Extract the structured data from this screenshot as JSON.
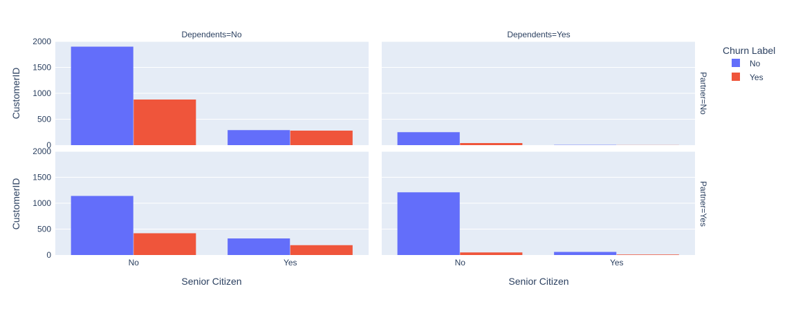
{
  "chart_data": {
    "type": "bar",
    "barmode": "group",
    "x_title": "Senior Citizen",
    "y_title": "CustomerID",
    "categories": [
      "No",
      "Yes"
    ],
    "y_range": [
      0,
      2000
    ],
    "y_ticks": [
      0,
      500,
      1000,
      1500,
      2000
    ],
    "y_tick_labels": [
      "0",
      "500",
      "1000",
      "1500",
      "2000"
    ],
    "column_labels": [
      "Dependents=No",
      "Dependents=Yes"
    ],
    "row_labels": [
      "Partner=No",
      "Partner=Yes"
    ],
    "legend": {
      "title": "Churn Label",
      "position": "top-right",
      "entries": [
        {
          "name": "No",
          "color": "#636efa"
        },
        {
          "name": "Yes",
          "color": "#ef553b"
        }
      ]
    },
    "panels": [
      {
        "dependents": "No",
        "partner": "No",
        "series": [
          {
            "name": "No",
            "values": [
              1900,
              290
            ]
          },
          {
            "name": "Yes",
            "values": [
              880,
              280
            ]
          }
        ]
      },
      {
        "dependents": "Yes",
        "partner": "No",
        "series": [
          {
            "name": "No",
            "values": [
              250,
              5
            ]
          },
          {
            "name": "Yes",
            "values": [
              40,
              2
            ]
          }
        ]
      },
      {
        "dependents": "No",
        "partner": "Yes",
        "series": [
          {
            "name": "No",
            "values": [
              1140,
              320
            ]
          },
          {
            "name": "Yes",
            "values": [
              420,
              190
            ]
          }
        ]
      },
      {
        "dependents": "Yes",
        "partner": "Yes",
        "series": [
          {
            "name": "No",
            "values": [
              1210,
              60
            ]
          },
          {
            "name": "Yes",
            "values": [
              50,
              10
            ]
          }
        ]
      }
    ],
    "grid": true,
    "plot_bgcolor": "#e5ecf6",
    "gridcolor": "#ffffff"
  }
}
